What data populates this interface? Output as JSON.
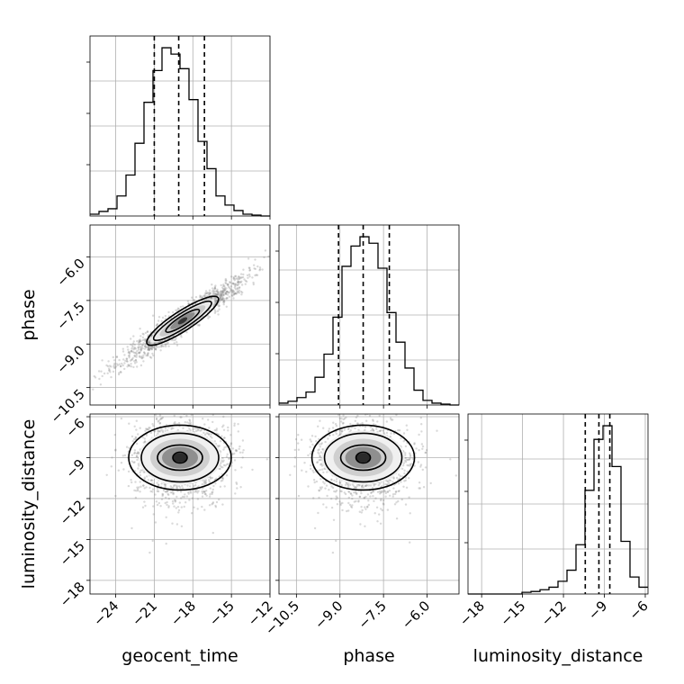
{
  "chart_data": {
    "type": "corner",
    "parameters": [
      "geocent_time",
      "phase",
      "luminosity_distance"
    ],
    "marginals": [
      {
        "parameter": "geocent_time",
        "range": [
          -26,
          -12
        ],
        "quantiles": [
          -21.0,
          -19.1,
          -17.1
        ],
        "bin_edges": [
          -26,
          -25.3,
          -24.6,
          -23.9,
          -23.2,
          -22.5,
          -21.8,
          -21.1,
          -20.4,
          -19.7,
          -19.0,
          -18.3,
          -17.6,
          -16.9,
          -16.2,
          -15.5,
          -14.8,
          -14.1,
          -13.4,
          -12.7,
          -12.0
        ],
        "counts": [
          2,
          5,
          8,
          22,
          45,
          80,
          125,
          160,
          185,
          178,
          162,
          128,
          82,
          52,
          22,
          12,
          6,
          2,
          1,
          0
        ]
      },
      {
        "parameter": "phase",
        "range": [
          -11.1,
          -4.9
        ],
        "quantiles": [
          -9.05,
          -8.2,
          -7.3
        ],
        "bin_edges": [
          -11.1,
          -10.79,
          -10.48,
          -10.17,
          -9.86,
          -9.55,
          -9.24,
          -8.93,
          -8.62,
          -8.31,
          -8.0,
          -7.69,
          -7.38,
          -7.07,
          -6.76,
          -6.45,
          -6.14,
          -5.83,
          -5.52,
          -5.21,
          -4.9
        ],
        "counts": [
          2,
          4,
          8,
          14,
          30,
          55,
          95,
          150,
          172,
          182,
          175,
          148,
          100,
          68,
          40,
          16,
          5,
          2,
          1,
          0
        ]
      },
      {
        "parameter": "luminosity_distance",
        "range": [
          -19,
          -5.8
        ],
        "quantiles": [
          -10.4,
          -9.4,
          -8.6
        ],
        "bin_edges": [
          -19.0,
          -18.34,
          -17.68,
          -17.02,
          -16.36,
          -15.7,
          -15.04,
          -14.38,
          -13.72,
          -13.06,
          -12.4,
          -11.74,
          -11.08,
          -10.42,
          -9.76,
          -9.1,
          -8.44,
          -7.78,
          -7.12,
          -6.46,
          -5.8
        ],
        "counts": [
          0,
          0,
          0,
          0,
          0,
          0,
          2,
          3,
          5,
          8,
          15,
          28,
          58,
          122,
          182,
          198,
          150,
          62,
          20,
          8
        ]
      }
    ],
    "joint_2d": [
      {
        "x": "geocent_time",
        "y": "phase",
        "center": [
          -18.8,
          -8.2
        ],
        "xlim": [
          -26,
          -12
        ],
        "ylim": [
          -11.1,
          -4.9
        ],
        "correlation": "strong positive"
      },
      {
        "x": "geocent_time",
        "y": "luminosity_distance",
        "center": [
          -19.0,
          -9.0
        ],
        "xlim": [
          -26,
          -12
        ],
        "ylim": [
          -19,
          -5.8
        ],
        "correlation": "none"
      },
      {
        "x": "phase",
        "y": "luminosity_distance",
        "center": [
          -8.2,
          -9.0
        ],
        "xlim": [
          -11.1,
          -4.9
        ],
        "ylim": [
          -19,
          -5.8
        ],
        "correlation": "none"
      }
    ],
    "xticks": {
      "geocent_time": [
        -24,
        -21,
        -18,
        -15,
        -12
      ],
      "phase": [
        -10.5,
        -9.0,
        -7.5,
        -6.0
      ],
      "luminosity_distance": [
        -18,
        -15,
        -12,
        -9,
        -6
      ]
    },
    "yticks": {
      "phase": [
        -10.5,
        -9.0,
        -7.5,
        -6.0
      ],
      "luminosity_distance": [
        -18,
        -15,
        -12,
        -9,
        -6
      ]
    },
    "tick_labels": {
      "geocent_time": [
        "−24",
        "−21",
        "−18",
        "−15",
        "−12"
      ],
      "phase": [
        "−10.5",
        "−9.0",
        "−7.5",
        "−6.0"
      ],
      "luminosity_distance": [
        "−18",
        "−15",
        "−12",
        "−9",
        "−6"
      ]
    },
    "xlabels": [
      "geocent_time",
      "phase",
      "luminosity_distance"
    ],
    "ylabels": [
      "phase",
      "luminosity_distance"
    ],
    "grid": true
  }
}
